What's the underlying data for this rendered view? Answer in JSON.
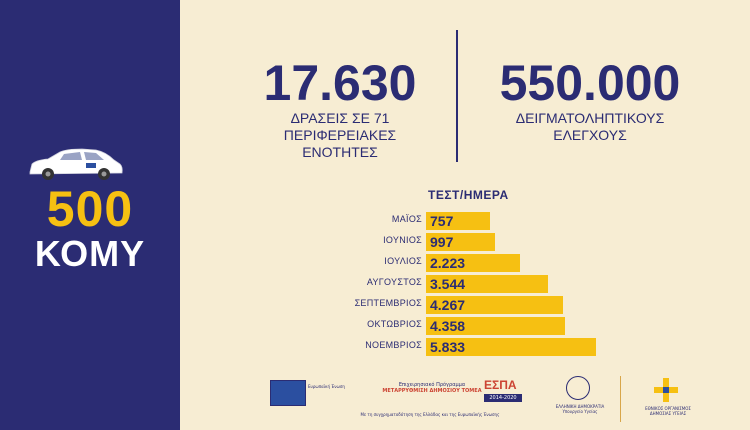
{
  "left": {
    "count": "500",
    "label": "ΚΟΜΥ"
  },
  "stats": [
    {
      "number": "17.630",
      "label_lines": [
        "ΔΡΑΣΕΙΣ ΣΕ 71",
        "ΠΕΡΙΦΕΡΕΙΑΚΕΣ",
        "ΕΝΟΤΗΤΕΣ"
      ]
    },
    {
      "number": "550.000",
      "label_lines": [
        "ΔΕΙΓΜΑΤΟΛΗΠΤΙΚΟΥΣ",
        "ΕΛΕΓΧΟΥΣ"
      ]
    }
  ],
  "chart_data": {
    "type": "bar",
    "title": "ΤΕΣΤ/ΗΜΕΡΑ",
    "categories": [
      "ΜΑΪΟΣ",
      "ΙΟΥΝΙΟΣ",
      "ΙΟΥΛΙΟΣ",
      "ΑΥΓΟΥΣΤΟΣ",
      "ΣΕΠΤΕΜΒΡΙΟΣ",
      "ΟΚΤΩΒΡΙΟΣ",
      "ΝΟΕΜΒΡΙΟΣ"
    ],
    "values": [
      757,
      997,
      2223,
      3544,
      4267,
      4358,
      5833
    ],
    "value_labels": [
      "757",
      "997",
      "2.223",
      "3.544",
      "4.267",
      "4.358",
      "5.833"
    ],
    "orientation": "horizontal"
  },
  "colors": {
    "navy": "#2b2c73",
    "yellow": "#f6c012",
    "cream": "#f7edd3"
  },
  "footer": {
    "eu_text": "Ευρωπαϊκή Ένωση",
    "program_lines": [
      "Επιχειρησιακό Πρόγραμμα",
      "ΜΕΤΑΡΡΥΘΜΙΣΗ ΔΗΜΟΣΙΟΥ ΤΟΜΕΑ"
    ],
    "espa": "ΕΣΠΑ",
    "espa_years": "2014-2020",
    "cofund": "Με τη συγχρηματοδότηση της Ελλάδας και της Ευρωπαϊκής Ένωσης",
    "ministry_lines": [
      "ΕΛΛΗΝΙΚΗ ΔΗΜΟΚΡΑΤΙΑ",
      "Υπουργείο Υγείας"
    ],
    "eody_lines": [
      "ΕΘΝΙΚΟΣ ΟΡΓΑΝΙΣΜΟΣ",
      "ΔΗΜΟΣΙΑΣ ΥΓΕΙΑΣ"
    ]
  }
}
